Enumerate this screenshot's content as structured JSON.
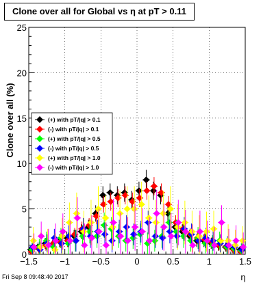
{
  "title": "Clone  over all for Global vs   η at pT > 0.11",
  "footer": "Fri Sep  8 09:48:40 2017",
  "colors": {
    "black": "#000000",
    "red": "#ff0000",
    "green": "#00ff00",
    "blue": "#0000ff",
    "yellow": "#ffff00",
    "magenta": "#ff00ff"
  },
  "chart_data": {
    "type": "scatter",
    "marker": "diamond",
    "error_bars": true,
    "grid": true,
    "legend_position": "left",
    "xlabel": "η",
    "ylabel": "Clone  over all (%)",
    "xlim": [
      -1.5,
      1.5
    ],
    "ylim": [
      0,
      25
    ],
    "x_ticks": [
      -1.5,
      -1,
      -0.5,
      0,
      0.5,
      1,
      1.5
    ],
    "x_tick_labels": [
      "−1.5",
      "−1",
      "−0.5",
      "0",
      "0.5",
      "1",
      "1.5"
    ],
    "y_ticks": [
      0,
      5,
      10,
      15,
      20,
      25
    ],
    "y_tick_labels": [
      "0",
      "5",
      "10",
      "15",
      "20",
      "25"
    ],
    "x": [
      -1.45,
      -1.35,
      -1.25,
      -1.15,
      -1.05,
      -0.95,
      -0.85,
      -0.75,
      -0.65,
      -0.55,
      -0.45,
      -0.35,
      -0.25,
      -0.15,
      -0.05,
      0.05,
      0.15,
      0.25,
      0.35,
      0.45,
      0.55,
      0.65,
      0.75,
      0.85,
      0.95,
      1.05,
      1.15,
      1.25,
      1.35,
      1.45
    ],
    "series": [
      {
        "name": "(+) with pT/|q| > 0.1",
        "color": "#000000",
        "values": [
          0.5,
          0.8,
          1.2,
          1.0,
          1.5,
          1.8,
          2.0,
          2.5,
          3.0,
          4.5,
          6.5,
          6.8,
          6.5,
          6.8,
          6.0,
          7.0,
          8.2,
          7.0,
          6.5,
          4.5,
          3.0,
          2.5,
          2.0,
          1.5,
          1.5,
          1.2,
          1.0,
          0.8,
          0.6,
          0.5
        ],
        "errors": [
          0.4,
          0.5,
          0.6,
          0.6,
          0.7,
          0.7,
          0.7,
          0.8,
          0.8,
          0.9,
          1.0,
          1.0,
          1.0,
          1.0,
          1.0,
          1.0,
          1.1,
          1.0,
          1.0,
          0.9,
          0.8,
          0.8,
          0.7,
          0.7,
          0.7,
          0.6,
          0.6,
          0.5,
          0.5,
          0.4
        ]
      },
      {
        "name": "(-) with pT/|q| > 0.1",
        "color": "#ff0000",
        "values": [
          0.3,
          0.6,
          1.0,
          1.2,
          1.3,
          1.5,
          2.2,
          2.8,
          3.2,
          4.2,
          5.5,
          5.8,
          6.2,
          6.5,
          5.8,
          6.2,
          7.0,
          7.5,
          6.8,
          5.5,
          3.5,
          2.8,
          2.2,
          1.8,
          1.6,
          1.3,
          1.0,
          0.8,
          0.5,
          0.3
        ],
        "errors": [
          0.4,
          0.5,
          0.6,
          0.6,
          0.6,
          0.7,
          0.7,
          0.8,
          0.8,
          0.9,
          0.9,
          1.0,
          1.0,
          1.0,
          1.0,
          1.0,
          1.0,
          1.0,
          1.0,
          0.9,
          0.8,
          0.8,
          0.7,
          0.7,
          0.7,
          0.6,
          0.6,
          0.5,
          0.5,
          0.4
        ]
      },
      {
        "name": "(+) with pT/|q| > 0.5",
        "color": "#00ff00",
        "values": [
          0.5,
          0.8,
          1.5,
          0.8,
          1.8,
          1.2,
          1.5,
          2.0,
          2.5,
          2.0,
          3.2,
          2.8,
          2.0,
          1.5,
          1.8,
          2.2,
          1.2,
          1.5,
          2.0,
          3.5,
          2.5,
          2.0,
          1.5,
          1.8,
          1.2,
          1.0,
          1.5,
          0.8,
          0.6,
          0.4
        ],
        "errors": [
          0.8,
          0.9,
          1.0,
          1.0,
          1.1,
          1.2,
          1.2,
          1.2,
          1.3,
          1.3,
          1.4,
          1.3,
          1.3,
          1.2,
          1.2,
          1.2,
          1.2,
          1.2,
          1.3,
          1.4,
          1.3,
          1.3,
          1.2,
          1.2,
          1.1,
          1.1,
          1.0,
          1.0,
          0.9,
          0.8
        ]
      },
      {
        "name": "(-) with pT/|q| > 0.5",
        "color": "#0000ff",
        "values": [
          0.8,
          0.5,
          1.2,
          1.8,
          1.2,
          2.0,
          1.5,
          2.8,
          2.0,
          2.5,
          2.2,
          1.5,
          2.5,
          3.0,
          2.2,
          2.5,
          3.5,
          2.0,
          1.8,
          2.5,
          2.0,
          2.8,
          2.2,
          1.5,
          1.8,
          1.5,
          1.2,
          1.0,
          0.8,
          0.5
        ],
        "errors": [
          0.8,
          0.9,
          1.0,
          1.0,
          1.1,
          1.2,
          1.2,
          1.2,
          1.3,
          1.3,
          1.3,
          1.3,
          1.3,
          1.3,
          1.2,
          1.2,
          1.3,
          1.3,
          1.3,
          1.3,
          1.3,
          1.3,
          1.2,
          1.2,
          1.1,
          1.1,
          1.0,
          1.0,
          0.9,
          0.8
        ]
      },
      {
        "name": "(+) with pT/|q| > 1.0",
        "color": "#ffff00",
        "values": [
          1.5,
          0.8,
          1.0,
          0.5,
          2.0,
          3.5,
          4.5,
          2.5,
          3.5,
          5.0,
          4.0,
          3.0,
          4.5,
          5.0,
          5.0,
          5.5,
          4.0,
          3.5,
          4.5,
          5.0,
          3.0,
          3.5,
          2.5,
          2.0,
          2.5,
          2.8,
          1.5,
          1.5,
          1.0,
          1.5
        ],
        "errors": [
          1.5,
          1.6,
          1.8,
          1.8,
          2.0,
          2.2,
          2.3,
          2.3,
          2.5,
          2.5,
          2.5,
          2.5,
          2.5,
          2.5,
          2.5,
          2.5,
          2.5,
          2.5,
          2.5,
          2.5,
          2.5,
          2.4,
          2.3,
          2.3,
          2.2,
          2.0,
          1.9,
          1.8,
          1.7,
          1.6
        ]
      },
      {
        "name": "(-) with pT/|q| > 1.0",
        "color": "#ff00ff",
        "values": [
          0.8,
          2.0,
          1.0,
          1.5,
          2.5,
          1.5,
          4.0,
          1.0,
          1.8,
          2.5,
          1.0,
          3.5,
          2.0,
          1.5,
          3.0,
          2.5,
          1.5,
          4.5,
          3.0,
          2.0,
          3.5,
          2.5,
          1.0,
          2.5,
          1.5,
          1.0,
          3.5,
          1.0,
          1.5,
          0.8
        ],
        "errors": [
          1.5,
          1.6,
          1.8,
          1.9,
          2.0,
          2.2,
          2.3,
          2.4,
          2.5,
          2.5,
          2.5,
          2.6,
          2.6,
          2.6,
          2.6,
          2.6,
          2.6,
          2.6,
          2.6,
          2.5,
          2.5,
          2.4,
          2.3,
          2.3,
          2.2,
          2.0,
          1.9,
          1.8,
          1.7,
          1.6
        ]
      }
    ]
  }
}
